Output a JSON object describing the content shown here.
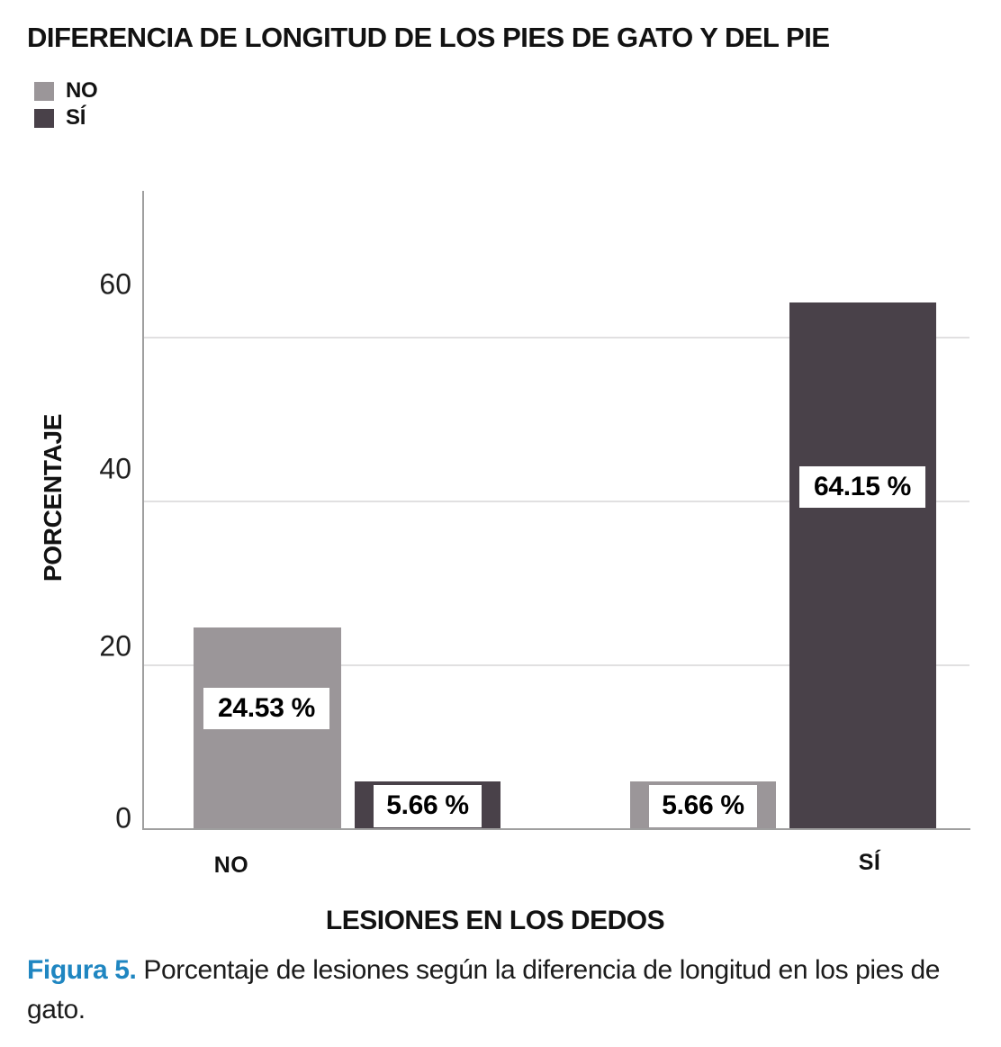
{
  "chart_data": {
    "type": "bar",
    "title": "DIFERENCIA DE LONGITUD DE LOS PIES DE GATO Y DEL PIE",
    "xlabel": "LESIONES EN LOS DEDOS",
    "ylabel": "PORCENTAJE",
    "categories": [
      "NO",
      "SÍ"
    ],
    "series": [
      {
        "name": "NO",
        "color": "#9b9699",
        "values": [
          24.53,
          5.66
        ]
      },
      {
        "name": "SÍ",
        "color": "#494149",
        "values": [
          5.66,
          64.15
        ]
      }
    ],
    "value_labels": [
      "24.53 %",
      "5.66 %",
      "5.66 %",
      "64.15 %"
    ],
    "yticks": [
      60,
      40,
      20,
      0
    ],
    "ylim": [
      0,
      78
    ],
    "grid": "horizontal",
    "legend_position": "top-left"
  },
  "caption": {
    "prefix": "Figura 5.",
    "text": "Porcentaje de lesiones según la diferencia de longitud en los pies de gato.",
    "accent_color": "#1f86c1"
  }
}
